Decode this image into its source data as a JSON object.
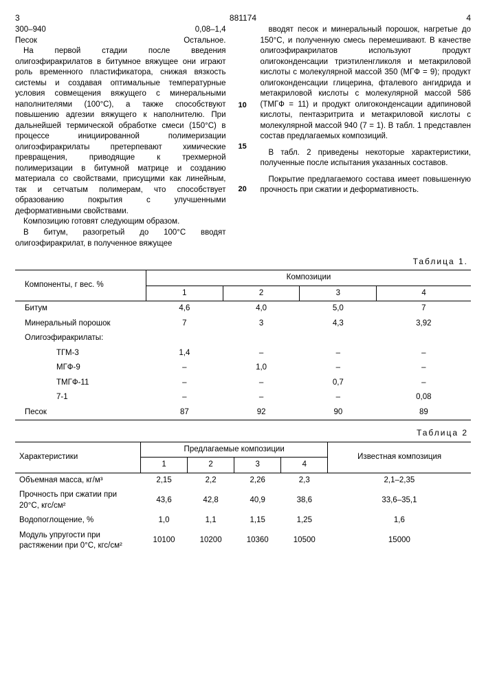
{
  "header": {
    "left_page": "3",
    "right_page": "4",
    "doc_number": "881174"
  },
  "topline": {
    "range": "300–940",
    "val": "0,08–1,4",
    "sand": "Песок",
    "rest": "Остальное."
  },
  "left_col": {
    "p1": "На первой стадии после введения олигоэфиракрилатов в битумное вяжущее они играют роль временного пластификатора, снижая вязкость системы и создавая оптимальные температурные условия совмещения вяжущего с минеральными наполнителями (100°С), а также способствуют повышению адгезии вяжущего к наполнителю. При дальнейшей термической обработке смеси (150°С) в процессе инициированной полимеризации олигоэфиракрилаты претерпевают химические превращения, приводящие к трехмерной полимеризации в битумной матрице и созданию материала со свойствами, присущими как линейным, так и сетчатым полимерам, что способствует образованию покрытия с улучшенными деформативными свойствами.",
    "p2": "Композицию готовят следующим образом.",
    "p3": "В битум, разогретый до 100°С вводят олигоэфиракрилат, в полученное вяжущее"
  },
  "right_col": {
    "p1": "вводят песок и минеральный порошок, нагретые до 150°С, и полученную смесь перемешивают. В качестве олигоэфиракрилатов используют продукт олигоконденсации триэтиленгликоля и метакриловой кислоты с молекулярной массой 350 (МГФ = 9); продукт олигоконденсации глицерина, фталевого ангидрида и метакриловой кислоты с молекулярной массой 586 (ТМГФ = 11) и продукт олигоконденсации адипиновой кислоты, пентаэритрита и метакриловой кислоты с молекулярной массой 940 (7 = 1). В табл. 1 представлен состав предлагаемых композиций.",
    "p2": "В табл. 2 приведены некоторые характеристики, полученные после испытания указанных составов.",
    "p3": "Покрытие предлагаемого состава имеет повышенную прочность при сжатии и деформативность."
  },
  "line_numbers": {
    "a": "10",
    "b": "15",
    "c": "20"
  },
  "table1": {
    "caption": "Таблица 1.",
    "col_header1": "Компоненты, г вес. %",
    "col_header2": "Композиции",
    "sub": [
      "1",
      "2",
      "3",
      "4"
    ],
    "rows": [
      {
        "name": "Битум",
        "v": [
          "4,6",
          "4,0",
          "5,0",
          "7"
        ]
      },
      {
        "name": "Минеральный порошок",
        "v": [
          "7",
          "3",
          "4,3",
          "3,92"
        ]
      },
      {
        "name": "Олигоэфиракрилаты:",
        "v": [
          "",
          "",
          "",
          ""
        ]
      },
      {
        "name": "ТГМ-3",
        "indent": true,
        "v": [
          "1,4",
          "–",
          "–",
          "–"
        ]
      },
      {
        "name": "МГФ-9",
        "indent": true,
        "v": [
          "–",
          "1,0",
          "–",
          "–"
        ]
      },
      {
        "name": "ТМГФ-11",
        "indent": true,
        "v": [
          "–",
          "–",
          "0,7",
          "–"
        ]
      },
      {
        "name": "7-1",
        "indent": true,
        "v": [
          "–",
          "–",
          "–",
          "0,08"
        ]
      },
      {
        "name": "Песок",
        "v": [
          "87",
          "92",
          "90",
          "89"
        ]
      }
    ]
  },
  "table2": {
    "caption": "Таблица 2",
    "col_header1": "Характеристики",
    "col_header2": "Предлагаемые композиции",
    "col_header3": "Известная композиция",
    "sub": [
      "1",
      "2",
      "3",
      "4"
    ],
    "rows": [
      {
        "name": "Объемная масса, кг/м³",
        "v": [
          "2,15",
          "2,2",
          "2,26",
          "2,3"
        ],
        "k": "2,1–2,35"
      },
      {
        "name": "Прочность при сжатии при 20°С, кгс/см²",
        "v": [
          "43,6",
          "42,8",
          "40,9",
          "38,6"
        ],
        "k": "33,6–35,1"
      },
      {
        "name": "Водопоглощение, %",
        "v": [
          "1,0",
          "1,1",
          "1,15",
          "1,25"
        ],
        "k": "1,6"
      },
      {
        "name": "Модуль упругости при растяжении при 0°С, кгс/см²",
        "v": [
          "10100",
          "10200",
          "10360",
          "10500"
        ],
        "k": "15000"
      }
    ]
  }
}
